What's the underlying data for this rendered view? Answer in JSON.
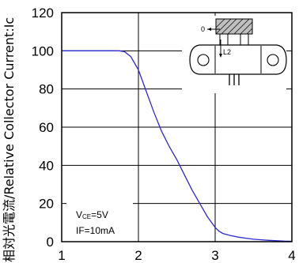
{
  "chart_data": {
    "type": "line",
    "title": "",
    "xlabel": "",
    "ylabel": "相対光電流/Relative Collector Current:Ic",
    "xlim": [
      1,
      4
    ],
    "ylim": [
      0,
      120
    ],
    "x_ticks": [
      "1",
      "2",
      "3",
      "4"
    ],
    "y_ticks": [
      "0",
      "20",
      "40",
      "60",
      "80",
      "100",
      "120"
    ],
    "grid": true,
    "legend": "none",
    "line_color": "#2b2bd6",
    "series": [
      {
        "x": [
          1.0,
          1.3,
          1.6,
          1.75,
          1.82,
          1.9,
          2.0,
          2.1,
          2.2,
          2.3,
          2.4,
          2.5,
          2.6,
          2.7,
          2.8,
          2.9,
          3.0,
          3.05,
          3.1,
          3.2,
          3.3,
          3.4,
          3.5,
          3.6,
          3.7,
          3.8,
          3.9,
          4.0
        ],
        "y": [
          100,
          100,
          100,
          100,
          99.5,
          97,
          90,
          79,
          68,
          58,
          50,
          43,
          35,
          27,
          20,
          13,
          7.5,
          5.5,
          4.3,
          3.2,
          2.4,
          1.8,
          1.3,
          1.0,
          0.7,
          0.5,
          0.3,
          0.2
        ]
      }
    ],
    "conditions": [
      "VCE=5V",
      "IF=10mA"
    ],
    "conditions_parts": {
      "v": "V",
      "ce": "CE",
      "v_value": "=5V",
      "if_line": "IF=10mA"
    },
    "inset_labels": {
      "origin": "0",
      "distance": "L2"
    }
  }
}
